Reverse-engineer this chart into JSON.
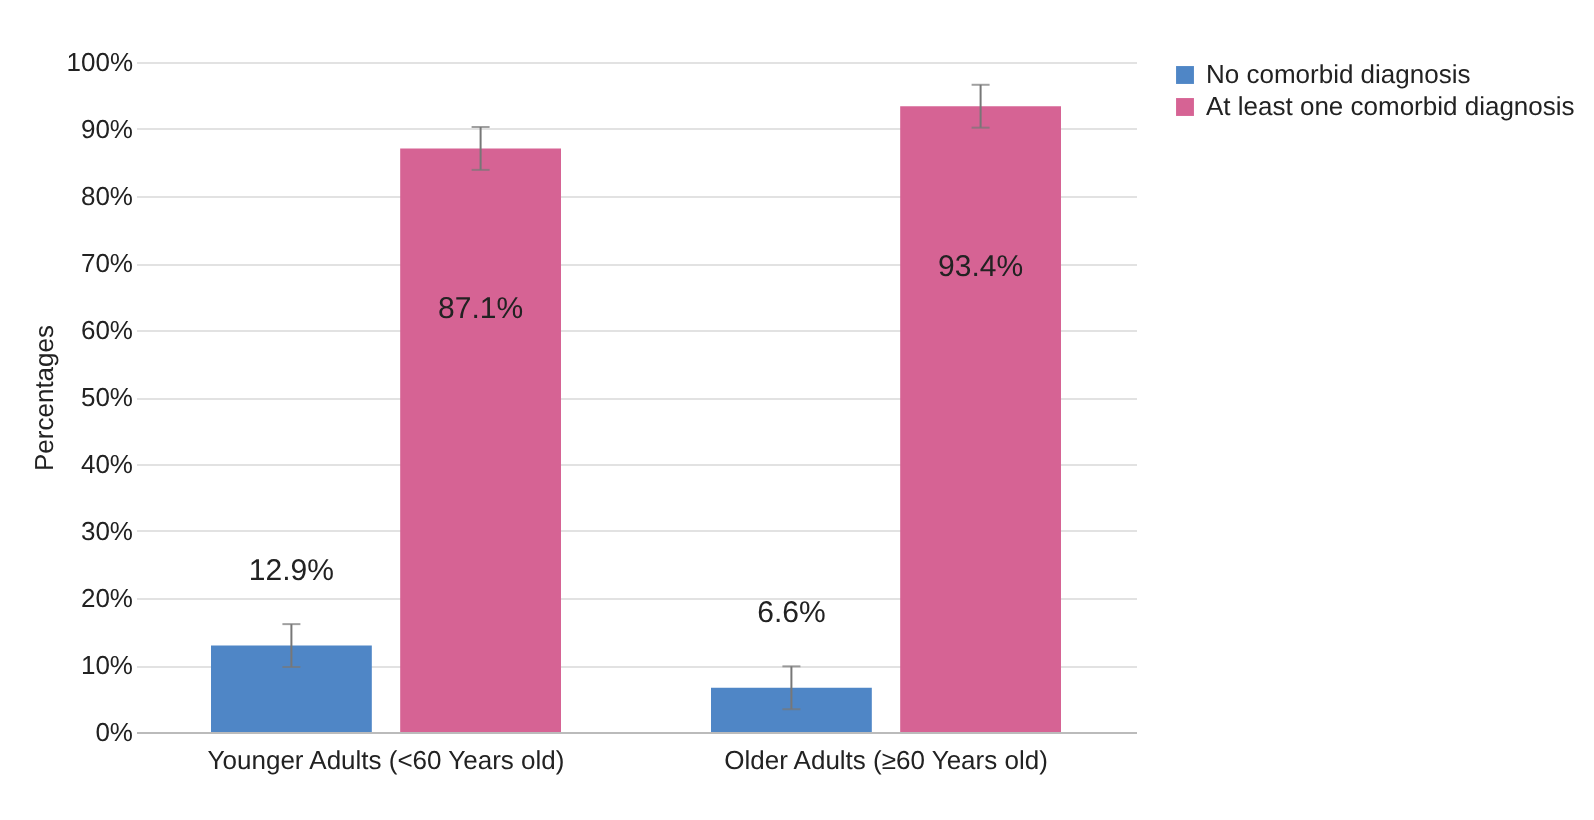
{
  "chart_data": {
    "type": "bar",
    "ylabel": "Percentages",
    "categories": [
      "Younger Adults (<60 Years old)",
      "Older Adults (≥60 Years old)"
    ],
    "series": [
      {
        "name": "No comorbid diagnosis",
        "color": "#4f86c6",
        "values": [
          12.9,
          6.6
        ],
        "errors": [
          3.2,
          3.2
        ],
        "value_labels": [
          "12.9%",
          "6.6%"
        ]
      },
      {
        "name": "At least one comorbid diagnosis",
        "color": "#d66394",
        "values": [
          87.1,
          93.4
        ],
        "errors": [
          3.2,
          3.2
        ],
        "value_labels": [
          "87.1%",
          "93.4%"
        ]
      }
    ],
    "ylim": [
      0,
      100
    ],
    "yticks": [
      {
        "value": 0,
        "label": "0%"
      },
      {
        "value": 10,
        "label": "10%"
      },
      {
        "value": 20,
        "label": "20%"
      },
      {
        "value": 30,
        "label": "30%"
      },
      {
        "value": 40,
        "label": "40%"
      },
      {
        "value": 50,
        "label": "50%"
      },
      {
        "value": 60,
        "label": "60%"
      },
      {
        "value": 70,
        "label": "70%"
      },
      {
        "value": 80,
        "label": "80%"
      },
      {
        "value": 90,
        "label": "90%"
      },
      {
        "value": 100,
        "label": "100%"
      }
    ],
    "grid": "y",
    "legend": "right"
  }
}
